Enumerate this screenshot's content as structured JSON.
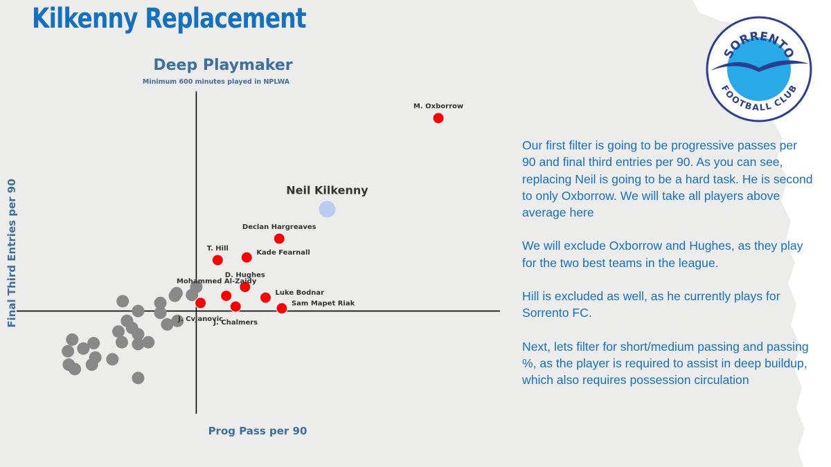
{
  "page": {
    "title": "Kilkenny Replacement",
    "background": "#ececeb",
    "paper": "#ffffff"
  },
  "colors": {
    "title": "#1670c0",
    "chart_title": "#3f6f9e",
    "axis": "#000000",
    "text_dark": "#333333",
    "highlight": "#ff0000",
    "target": "#b8cff0",
    "others": "#888888",
    "commentary": "#1670c0",
    "logo_blue": "#2a3e92",
    "logo_fill": "#28a9e8"
  },
  "logo": {
    "top_text": "SORRENTO",
    "bottom_text": "FOOTBALL CLUB"
  },
  "commentary": {
    "p1": "Our first filter is going to be progressive passes per 90 and final third entries per 90. As you can see, replacing Neil is going to be a hard task. He is second to only Oxborrow. We will take all players above average here",
    "p2": "We will exclude Oxborrow and Hughes, as they play for the two best teams in the league.",
    "p3": "Hill is excluded as well, as he currently plays for Sorrento FC.",
    "p4": "Next, lets filter for short/medium passing and passing %, as the player is required to assist in deep buildup, which also requires possession circulation"
  },
  "chart_data": {
    "type": "scatter",
    "title": "Deep Playmaker",
    "subtitle": "Minimum 600 minutes played in NPLWA",
    "xlabel": "Prog Pass per 90",
    "ylabel": "Final Third Entries per 90",
    "xlim": [
      -2.1,
      3.55
    ],
    "ylim": [
      -1.15,
      2.46
    ],
    "x_average": 0,
    "y_average": 0,
    "highlighted": [
      {
        "name": "M. Oxborrow",
        "x": 2.83,
        "y": 2.16,
        "label_pos": "above"
      },
      {
        "name": "Declan Hargreaves",
        "x": 0.97,
        "y": 0.81,
        "label_pos": "above"
      },
      {
        "name": "T. Hill",
        "x": 0.25,
        "y": 0.57,
        "label_pos": "above"
      },
      {
        "name": "Kade Fearnall",
        "x": 0.59,
        "y": 0.6,
        "label_pos": "right"
      },
      {
        "name": "D. Hughes",
        "x": 0.57,
        "y": 0.27,
        "label_pos": "above"
      },
      {
        "name": "Luke Bodnar",
        "x": 0.81,
        "y": 0.15,
        "label_pos": "right"
      },
      {
        "name": "Mohammed Al-Zaidy",
        "x": 0.35,
        "y": 0.17,
        "label_pos": "above-left"
      },
      {
        "name": "Sam Mapet Riak",
        "x": 1.0,
        "y": 0.03,
        "label_pos": "right"
      },
      {
        "name": "J. Chalmers",
        "x": 0.46,
        "y": 0.05,
        "label_pos": "below"
      },
      {
        "name": "J. Cvjanovic",
        "x": 0.05,
        "y": 0.09,
        "label_pos": "below"
      }
    ],
    "target": {
      "name": "Neil Kilkenny",
      "x": 1.53,
      "y": 1.14
    },
    "others": [
      [
        0.0,
        0.27
      ],
      [
        -0.25,
        0.17
      ],
      [
        -0.05,
        0.18
      ],
      [
        -0.23,
        0.2
      ],
      [
        -0.86,
        0.11
      ],
      [
        -0.42,
        0.09
      ],
      [
        -0.68,
        0.0
      ],
      [
        -0.42,
        -0.02
      ],
      [
        -0.22,
        -0.11
      ],
      [
        -0.34,
        -0.15
      ],
      [
        -0.81,
        -0.11
      ],
      [
        -0.75,
        -0.19
      ],
      [
        -0.91,
        -0.23
      ],
      [
        -0.68,
        -0.26
      ],
      [
        -0.87,
        -0.35
      ],
      [
        -0.56,
        -0.35
      ],
      [
        -1.45,
        -0.32
      ],
      [
        -1.2,
        -0.36
      ],
      [
        -1.32,
        -0.42
      ],
      [
        -1.5,
        -0.45
      ],
      [
        -0.68,
        -0.37
      ],
      [
        -1.18,
        -0.52
      ],
      [
        -1.49,
        -0.6
      ],
      [
        -1.42,
        -0.65
      ],
      [
        -0.98,
        -0.54
      ],
      [
        -1.22,
        -0.6
      ],
      [
        -0.68,
        -0.75
      ]
    ]
  }
}
